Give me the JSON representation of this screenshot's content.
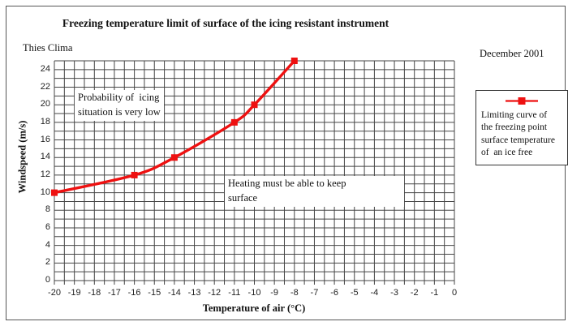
{
  "frame": {
    "title": "Freezing temperature limit of surface of the icing resistant instrument",
    "vendor": "Thies Clima",
    "date": "December 2001"
  },
  "chart_data": {
    "type": "line",
    "title": "Freezing temperature limit of surface of the icing resistant instrument",
    "xlabel": "Temperature of air (°C)",
    "ylabel": "Windspeed (m/s)",
    "xlim": [
      -20,
      0
    ],
    "ylim": [
      0,
      25
    ],
    "x_ticks": [
      -20,
      -19,
      -18,
      -17,
      -16,
      -15,
      -14,
      -13,
      -12,
      -11,
      -10,
      -9,
      -8,
      -7,
      -6,
      -5,
      -4,
      -3,
      -2,
      -1,
      0
    ],
    "y_ticks": [
      0,
      2,
      4,
      6,
      8,
      10,
      12,
      14,
      16,
      18,
      20,
      22,
      24
    ],
    "x_minor_grid_step": 0.5,
    "y_minor_grid_step": 1,
    "grid": true,
    "grid_color": "#454545",
    "legend_position": "right",
    "series": [
      {
        "name": "Limiting curve of the freezing point surface temperature of an ice free",
        "color": "#ee1111",
        "marker": "square",
        "x": [
          -20,
          -16,
          -14,
          -11,
          -10,
          -8
        ],
        "y": [
          10,
          12,
          14,
          18,
          20,
          25
        ]
      }
    ],
    "annotations": [
      {
        "id": "probability",
        "lines": [
          "Probability of  icing",
          "situation is very low"
        ]
      },
      {
        "id": "heating",
        "lines": [
          "Heating must be able to keep",
          "surface"
        ]
      }
    ]
  },
  "legend": {
    "lines": [
      "Limiting curve of",
      "the freezing point",
      "surface temperature",
      "of  an ice free"
    ]
  },
  "colors": {
    "curve": "#ee1111",
    "grid": "#454545",
    "frame_border": "#555555",
    "text": "#111111"
  }
}
